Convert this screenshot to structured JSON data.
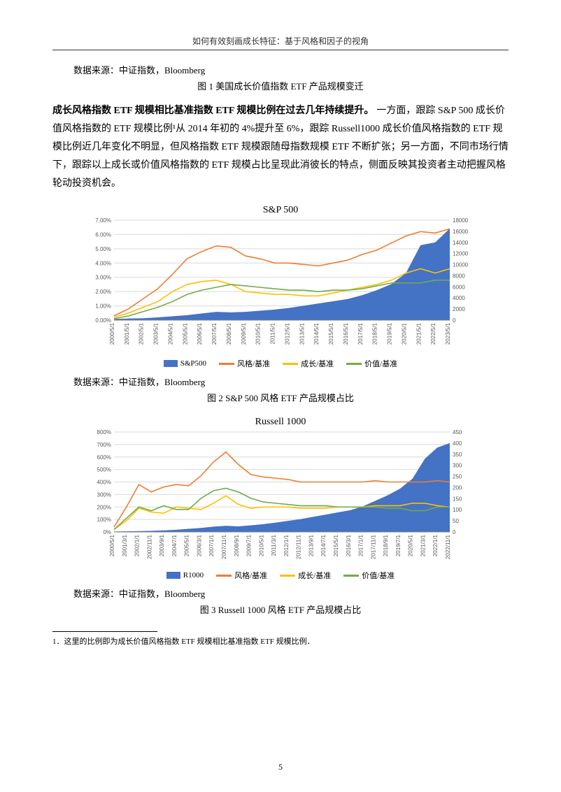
{
  "header": "如何有效刻画成长特征：基于风格和因子的视角",
  "source_label": "数据来源：中证指数，Bloomberg",
  "fig1_caption": "图 1 美国成长价值指数 ETF 产品规模变迁",
  "lead": "成长风格指数 ETF 规模相比基准指数 ETF 规模比例在过去几年持续提升。",
  "body": "一方面，跟踪 S&P 500 成长价值风格指数的 ETF 规模比例¹从 2014 年初的 4%提升至 6%，跟踪 Russell1000 成长价值风格指数的 ETF 规模比例近几年变化不明显，但风格指数 ETF 规模跟随母指数规模 ETF 不断扩张；另一方面，不同市场行情下，跟踪以上成长或价值风格指数的 ETF 规模占比呈现此消彼长的特点，侧面反映其投资者主动把握风格轮动投资机会。",
  "chart1": {
    "type": "combo-area-line",
    "title": "S&P 500",
    "left_axis": {
      "label_fmt": "pct",
      "min": 0,
      "max": 7,
      "step": 1,
      "suffix": ".00%"
    },
    "right_axis": {
      "min": 0,
      "max": 18000,
      "step": 2000
    },
    "x_labels": [
      "2000/5/1",
      "2001/5/1",
      "2002/5/1",
      "2003/5/1",
      "2004/5/1",
      "2005/5/1",
      "2006/5/1",
      "2007/5/1",
      "2008/5/1",
      "2009/5/1",
      "2010/5/1",
      "2011/5/1",
      "2012/5/1",
      "2013/5/1",
      "2014/5/1",
      "2015/5/1",
      "2016/5/1",
      "2017/5/1",
      "2018/5/1",
      "2019/5/1",
      "2020/5/1",
      "2021/5/1",
      "2022/5/1",
      "2023/5/1"
    ],
    "series_area": {
      "name": "S&P500",
      "color": "#4472c4",
      "values": [
        200,
        300,
        350,
        500,
        700,
        900,
        1200,
        1500,
        1400,
        1500,
        1700,
        1900,
        2200,
        2600,
        3000,
        3400,
        3800,
        4500,
        5400,
        6500,
        8500,
        13500,
        14000,
        16500
      ]
    },
    "series_lines": [
      {
        "name": "风格/基准",
        "color": "#ed7d31",
        "values": [
          0.3,
          0.8,
          1.5,
          2.2,
          3.2,
          4.3,
          4.8,
          5.2,
          5.1,
          4.5,
          4.3,
          4.0,
          4.0,
          3.9,
          3.8,
          4.0,
          4.2,
          4.6,
          4.9,
          5.4,
          5.9,
          6.2,
          6.1,
          6.4
        ]
      },
      {
        "name": "成长/基准",
        "color": "#ffc000",
        "values": [
          0.2,
          0.5,
          0.9,
          1.3,
          2.0,
          2.5,
          2.7,
          2.8,
          2.5,
          2.0,
          1.9,
          1.8,
          1.8,
          1.7,
          1.7,
          1.9,
          2.1,
          2.3,
          2.5,
          2.8,
          3.3,
          3.6,
          3.3,
          3.6
        ]
      },
      {
        "name": "价值/基准",
        "color": "#70ad47",
        "values": [
          0.1,
          0.3,
          0.6,
          0.9,
          1.3,
          1.8,
          2.1,
          2.3,
          2.5,
          2.4,
          2.3,
          2.2,
          2.1,
          2.1,
          2.0,
          2.1,
          2.1,
          2.2,
          2.4,
          2.6,
          2.6,
          2.6,
          2.8,
          2.8
        ]
      }
    ],
    "grid_color": "#d9d9d9",
    "bg": "#ffffff",
    "axis_fontsize": 8
  },
  "fig2_caption": "图 2 S&P 500 风格 ETF 产品规模占比",
  "chart2": {
    "type": "combo-area-line",
    "title": "Russell 1000",
    "left_axis": {
      "label_fmt": "pct_int",
      "min": 0,
      "max": 800,
      "step": 100,
      "suffix": "%"
    },
    "right_axis": {
      "min": 0,
      "max": 450,
      "step": 50
    },
    "x_labels": [
      "2000/5/1",
      "2001/3/1",
      "2002/1/1",
      "2002/11/1",
      "2003/9/1",
      "2004/7/1",
      "2005/5/1",
      "2006/3/1",
      "2007/1/1",
      "2007/11/1",
      "2008/9/1",
      "2009/7/1",
      "2010/5/1",
      "2011/3/1",
      "2012/1/1",
      "2012/11/1",
      "2013/9/1",
      "2014/7/1",
      "2015/5/1",
      "2016/3/1",
      "2017/1/1",
      "2017/11/1",
      "2018/9/1",
      "2019/7/1",
      "2020/5/1",
      "2021/3/1",
      "2022/1/1",
      "2022/11/1"
    ],
    "series_area": {
      "name": "R1000",
      "color": "#4472c4",
      "values": [
        2,
        3,
        4,
        5,
        7,
        10,
        14,
        18,
        24,
        28,
        25,
        30,
        35,
        42,
        50,
        58,
        68,
        78,
        88,
        98,
        115,
        140,
        165,
        195,
        240,
        330,
        380,
        400
      ]
    },
    "series_lines": [
      {
        "name": "风格/基准",
        "color": "#ed7d31",
        "values": [
          40,
          200,
          380,
          320,
          360,
          380,
          370,
          450,
          560,
          640,
          540,
          460,
          440,
          430,
          420,
          400,
          400,
          400,
          400,
          400,
          400,
          410,
          400,
          400,
          400,
          400,
          410,
          400
        ]
      },
      {
        "name": "成长/基准",
        "color": "#ffc000",
        "values": [
          20,
          90,
          190,
          160,
          150,
          200,
          190,
          180,
          230,
          290,
          220,
          190,
          200,
          200,
          200,
          190,
          190,
          190,
          200,
          200,
          200,
          210,
          210,
          210,
          230,
          230,
          210,
          200
        ]
      },
      {
        "name": "价值/基准",
        "color": "#70ad47",
        "values": [
          20,
          110,
          200,
          170,
          210,
          180,
          180,
          270,
          330,
          350,
          320,
          270,
          240,
          230,
          220,
          210,
          210,
          210,
          200,
          200,
          198,
          200,
          190,
          190,
          170,
          170,
          200,
          200
        ]
      }
    ],
    "grid_color": "#d9d9d9",
    "bg": "#ffffff",
    "axis_fontsize": 8
  },
  "fig3_caption": "图 3 Russell 1000 风格 ETF 产品规模占比",
  "legend_labels": {
    "area1": "S&P500",
    "area2": "R1000",
    "l1": "风格/基准",
    "l2": "成长/基准",
    "l3": "价值/基准"
  },
  "footnote": "1．这里的比例即为成长价值风格指数 ETF 规模相比基准指数 ETF 规模比例．",
  "page_number": "5"
}
